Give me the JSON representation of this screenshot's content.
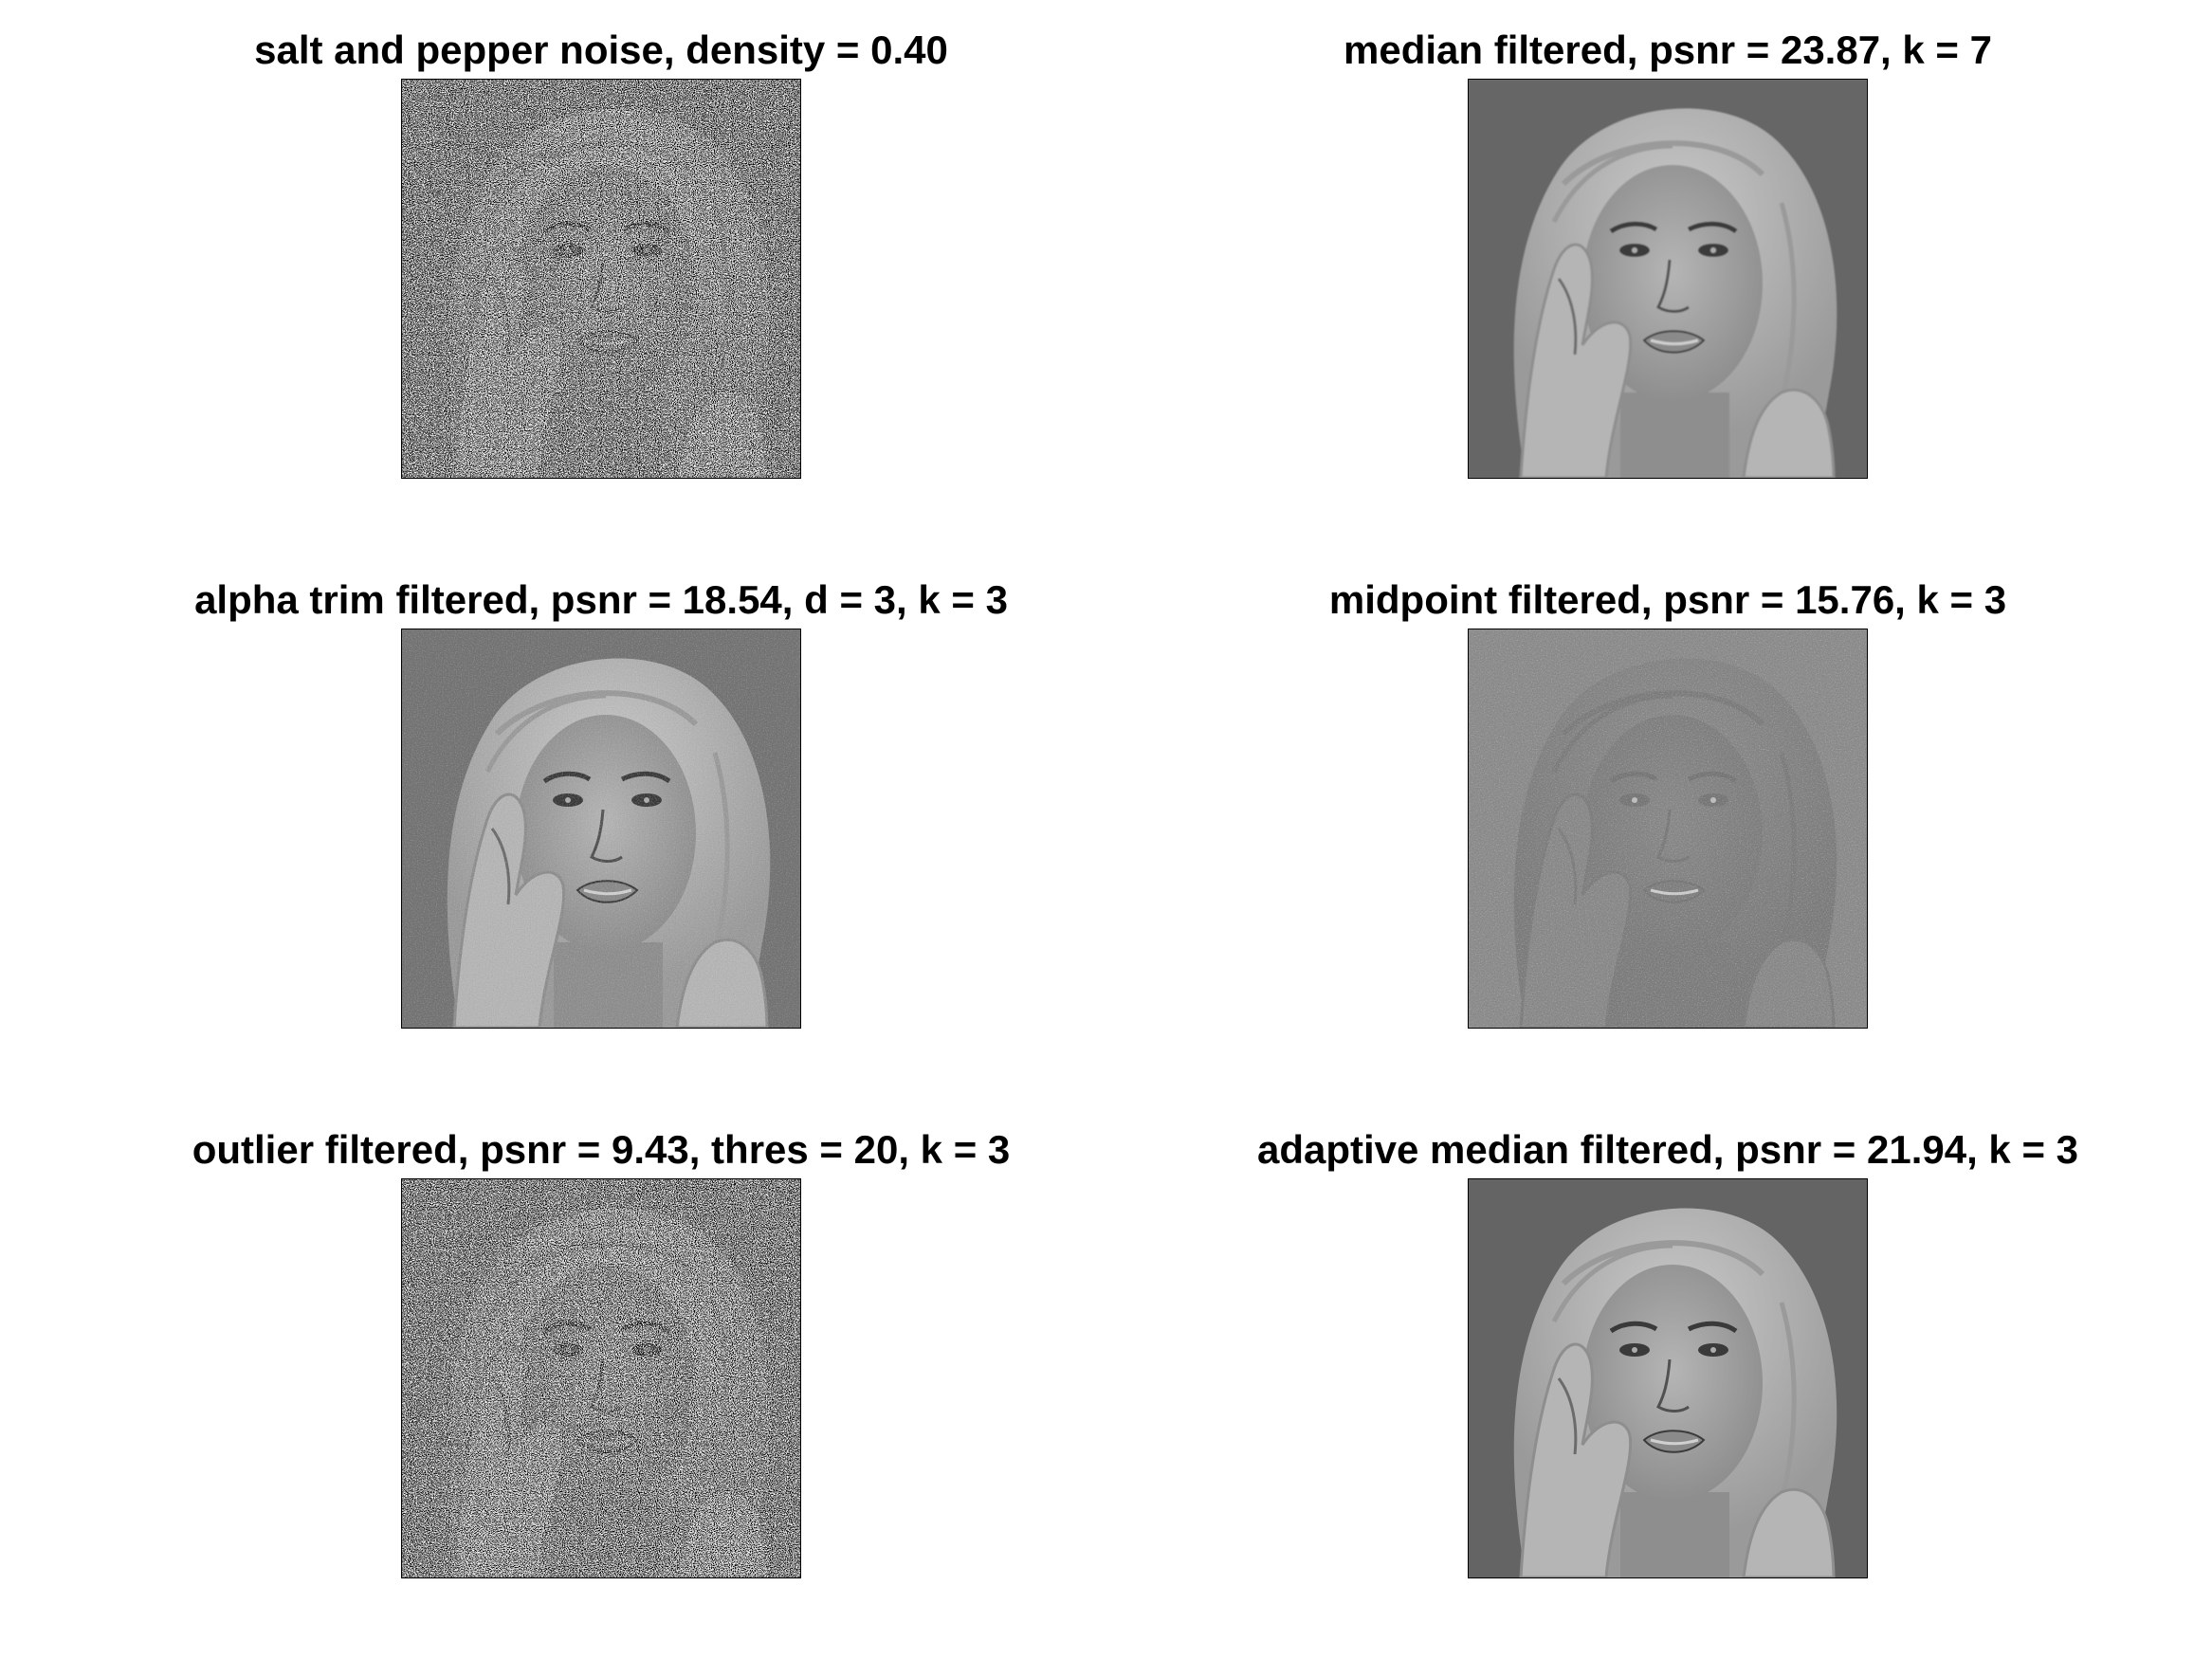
{
  "figure": {
    "panels": [
      {
        "id": "noisy",
        "title": "salt and pepper noise, density = 0.40",
        "image_desc": "noisy-portrait-image",
        "style": "noisy"
      },
      {
        "id": "median",
        "title": "median filtered, psnr = 23.87, k = 7",
        "image_desc": "median-filtered-portrait-image",
        "style": "clean-smooth"
      },
      {
        "id": "alpha-trim",
        "title": "alpha trim filtered, psnr = 18.54, d = 3, k = 3",
        "image_desc": "alpha-trim-filtered-portrait-image",
        "style": "grainy"
      },
      {
        "id": "midpoint",
        "title": "midpoint filtered, psnr = 15.76, k = 3",
        "image_desc": "midpoint-filtered-portrait-image",
        "style": "washed"
      },
      {
        "id": "outlier",
        "title": "outlier filtered, psnr = 9.43, thres = 20, k = 3",
        "image_desc": "outlier-filtered-portrait-image",
        "style": "noisy"
      },
      {
        "id": "adaptive-median",
        "title": "adaptive median filtered, psnr = 21.94, k = 3",
        "image_desc": "adaptive-median-filtered-portrait-image",
        "style": "clean"
      }
    ]
  }
}
